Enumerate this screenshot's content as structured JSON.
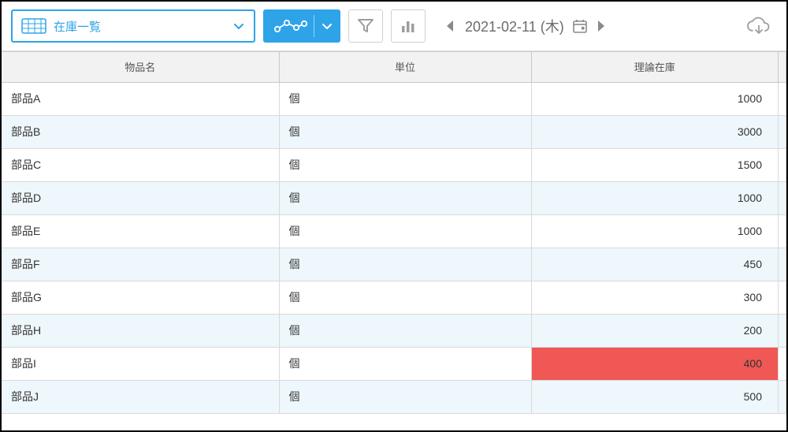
{
  "toolbar": {
    "view_selector": {
      "label": "在庫一覧"
    },
    "date": "2021-02-11 (木)"
  },
  "table": {
    "columns": [
      "物品名",
      "単位",
      "理論在庫"
    ],
    "col_align": [
      "left",
      "left",
      "right"
    ],
    "rows": [
      {
        "name": "部品A",
        "unit": "個",
        "stock": "1000",
        "stripe": false,
        "alert": false
      },
      {
        "name": "部品B",
        "unit": "個",
        "stock": "3000",
        "stripe": true,
        "alert": false
      },
      {
        "name": "部品C",
        "unit": "個",
        "stock": "1500",
        "stripe": false,
        "alert": false
      },
      {
        "name": "部品D",
        "unit": "個",
        "stock": "1000",
        "stripe": true,
        "alert": false
      },
      {
        "name": "部品E",
        "unit": "個",
        "stock": "1000",
        "stripe": false,
        "alert": false
      },
      {
        "name": "部品F",
        "unit": "個",
        "stock": "450",
        "stripe": true,
        "alert": false
      },
      {
        "name": "部品G",
        "unit": "個",
        "stock": "300",
        "stripe": false,
        "alert": false
      },
      {
        "name": "部品H",
        "unit": "個",
        "stock": "200",
        "stripe": true,
        "alert": false
      },
      {
        "name": "部品I",
        "unit": "個",
        "stock": "400",
        "stripe": false,
        "alert": true
      },
      {
        "name": "部品J",
        "unit": "個",
        "stock": "500",
        "stripe": true,
        "alert": false
      }
    ]
  },
  "colors": {
    "accent": "#2ea3e8",
    "header_bg": "#f2f2f2",
    "stripe_bg": "#eef7fb",
    "alert_bg": "#ef5854",
    "border": "#c9c9c9",
    "icon_gray": "#9e9e9e"
  }
}
